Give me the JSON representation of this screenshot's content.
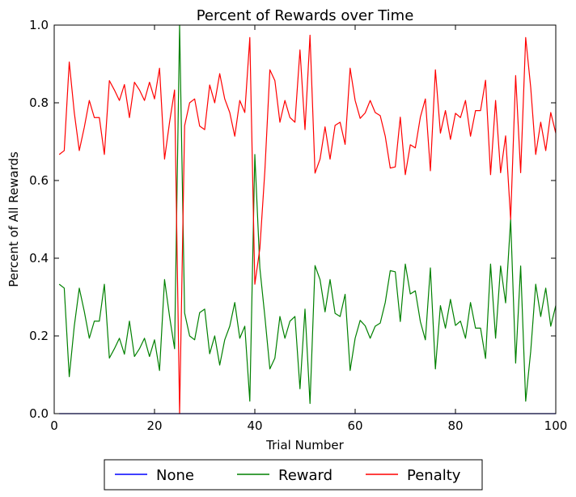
{
  "chart_data": {
    "type": "line",
    "title": "Percent of Rewards over Time",
    "xlabel": "Trial Number",
    "ylabel": "Percent of All Rewards",
    "xlim": [
      0,
      100
    ],
    "ylim": [
      0.0,
      1.0
    ],
    "xticks": [
      0,
      20,
      40,
      60,
      80,
      100
    ],
    "xtick_labels": [
      "0",
      "20",
      "40",
      "60",
      "80",
      "100"
    ],
    "yticks": [
      0.0,
      0.2,
      0.4,
      0.6,
      0.8,
      1.0
    ],
    "ytick_labels": [
      "0.0",
      "0.2",
      "0.4",
      "0.6",
      "0.8",
      "1.0"
    ],
    "grid": false,
    "legend_placement": "below",
    "x": [
      1,
      2,
      3,
      4,
      5,
      6,
      7,
      8,
      9,
      10,
      11,
      12,
      13,
      14,
      15,
      16,
      17,
      18,
      19,
      20,
      21,
      22,
      23,
      24,
      25,
      26,
      27,
      28,
      29,
      30,
      31,
      32,
      33,
      34,
      35,
      36,
      37,
      38,
      39,
      40,
      41,
      42,
      43,
      44,
      45,
      46,
      47,
      48,
      49,
      50,
      51,
      52,
      53,
      54,
      55,
      56,
      57,
      58,
      59,
      60,
      61,
      62,
      63,
      64,
      65,
      66,
      67,
      68,
      69,
      70,
      71,
      72,
      73,
      74,
      75,
      76,
      77,
      78,
      79,
      80,
      81,
      82,
      83,
      84,
      85,
      86,
      87,
      88,
      89,
      90,
      91,
      92,
      93,
      94,
      95,
      96,
      97,
      98,
      99,
      100
    ],
    "series": [
      {
        "name": "None",
        "color": "#0000ff",
        "values": [
          0,
          0,
          0,
          0,
          0,
          0,
          0,
          0,
          0,
          0,
          0,
          0,
          0,
          0,
          0,
          0,
          0,
          0,
          0,
          0,
          0,
          0,
          0,
          0,
          0,
          0,
          0,
          0,
          0,
          0,
          0,
          0,
          0,
          0,
          0,
          0,
          0,
          0,
          0,
          0,
          0,
          0,
          0,
          0,
          0,
          0,
          0,
          0,
          0,
          0,
          0,
          0,
          0,
          0,
          0,
          0,
          0,
          0,
          0,
          0,
          0,
          0,
          0,
          0,
          0,
          0,
          0,
          0,
          0,
          0,
          0,
          0,
          0,
          0,
          0,
          0,
          0,
          0,
          0,
          0,
          0,
          0,
          0,
          0,
          0,
          0,
          0,
          0,
          0,
          0,
          0,
          0,
          0,
          0,
          0,
          0,
          0,
          0,
          0,
          0
        ]
      },
      {
        "name": "Reward",
        "color": "#008000",
        "values": [
          0.333,
          0.323,
          0.095,
          0.225,
          0.323,
          0.263,
          0.194,
          0.238,
          0.238,
          0.333,
          0.143,
          0.167,
          0.194,
          0.153,
          0.238,
          0.147,
          0.167,
          0.194,
          0.147,
          0.19,
          0.111,
          0.345,
          0.25,
          0.167,
          1.0,
          0.259,
          0.2,
          0.19,
          0.26,
          0.269,
          0.154,
          0.2,
          0.125,
          0.19,
          0.225,
          0.286,
          0.194,
          0.225,
          0.032,
          0.667,
          0.375,
          0.25,
          0.115,
          0.143,
          0.25,
          0.194,
          0.238,
          0.25,
          0.064,
          0.269,
          0.026,
          0.381,
          0.345,
          0.262,
          0.345,
          0.258,
          0.25,
          0.307,
          0.111,
          0.194,
          0.24,
          0.226,
          0.194,
          0.225,
          0.233,
          0.286,
          0.368,
          0.365,
          0.237,
          0.385,
          0.308,
          0.316,
          0.237,
          0.19,
          0.375,
          0.115,
          0.278,
          0.22,
          0.294,
          0.227,
          0.238,
          0.194,
          0.286,
          0.22,
          0.22,
          0.142,
          0.385,
          0.194,
          0.38,
          0.285,
          0.5,
          0.13,
          0.38,
          0.032,
          0.16,
          0.333,
          0.25,
          0.323,
          0.225,
          0.278
        ]
      },
      {
        "name": "Penalty",
        "color": "#ff0000",
        "values": [
          0.667,
          0.677,
          0.905,
          0.775,
          0.677,
          0.737,
          0.806,
          0.762,
          0.762,
          0.667,
          0.857,
          0.833,
          0.806,
          0.847,
          0.762,
          0.853,
          0.833,
          0.806,
          0.853,
          0.81,
          0.889,
          0.655,
          0.75,
          0.833,
          0.0,
          0.741,
          0.8,
          0.81,
          0.74,
          0.731,
          0.846,
          0.8,
          0.875,
          0.81,
          0.775,
          0.714,
          0.806,
          0.775,
          0.968,
          0.333,
          0.425,
          0.625,
          0.885,
          0.857,
          0.75,
          0.806,
          0.762,
          0.75,
          0.936,
          0.731,
          0.974,
          0.619,
          0.655,
          0.738,
          0.655,
          0.742,
          0.75,
          0.693,
          0.889,
          0.806,
          0.76,
          0.774,
          0.806,
          0.775,
          0.767,
          0.714,
          0.632,
          0.635,
          0.763,
          0.615,
          0.692,
          0.684,
          0.763,
          0.81,
          0.625,
          0.885,
          0.722,
          0.78,
          0.706,
          0.773,
          0.762,
          0.806,
          0.714,
          0.78,
          0.78,
          0.858,
          0.615,
          0.806,
          0.62,
          0.715,
          0.5,
          0.87,
          0.62,
          0.968,
          0.84,
          0.667,
          0.75,
          0.677,
          0.775,
          0.722
        ]
      }
    ]
  }
}
